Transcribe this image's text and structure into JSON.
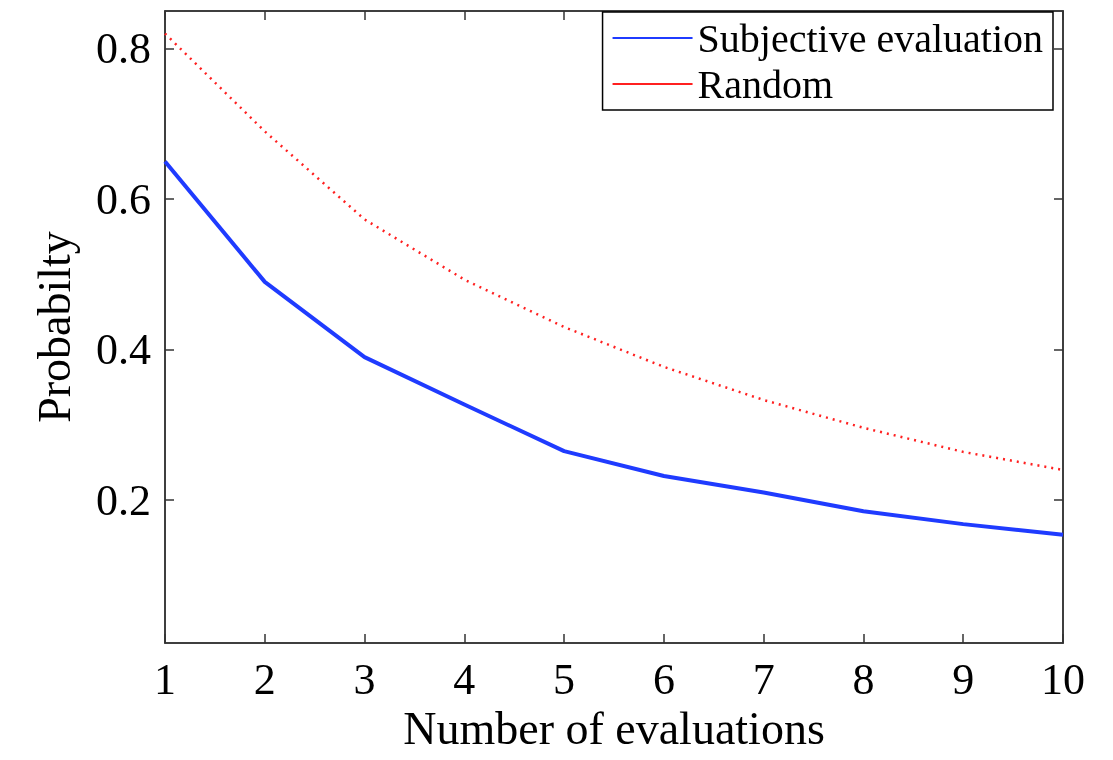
{
  "chart_data": {
    "type": "line",
    "xlabel": "Number of evaluations",
    "ylabel": "Probabilty",
    "x": [
      1,
      2,
      3,
      4,
      5,
      6,
      7,
      8,
      9,
      10
    ],
    "series": [
      {
        "name": "Subjective evaluation",
        "color": "#1f3bff",
        "line_style": "solid",
        "values": [
          0.65,
          0.49,
          0.39,
          0.327,
          0.265,
          0.232,
          0.21,
          0.185,
          0.168,
          0.154
        ]
      },
      {
        "name": "Random",
        "color": "#ff2020",
        "line_style": "dotted",
        "values": [
          0.82,
          0.69,
          0.573,
          0.493,
          0.43,
          0.377,
          0.333,
          0.296,
          0.264,
          0.24
        ]
      }
    ],
    "xlim": [
      1,
      10
    ],
    "xticks": [
      1,
      2,
      3,
      4,
      5,
      6,
      7,
      8,
      9,
      10
    ],
    "ylim": [
      0.01,
      0.85
    ],
    "yticks": [
      0.2,
      0.4,
      0.6,
      0.8
    ],
    "grid": false,
    "legend": "top right",
    "marker": "none"
  }
}
